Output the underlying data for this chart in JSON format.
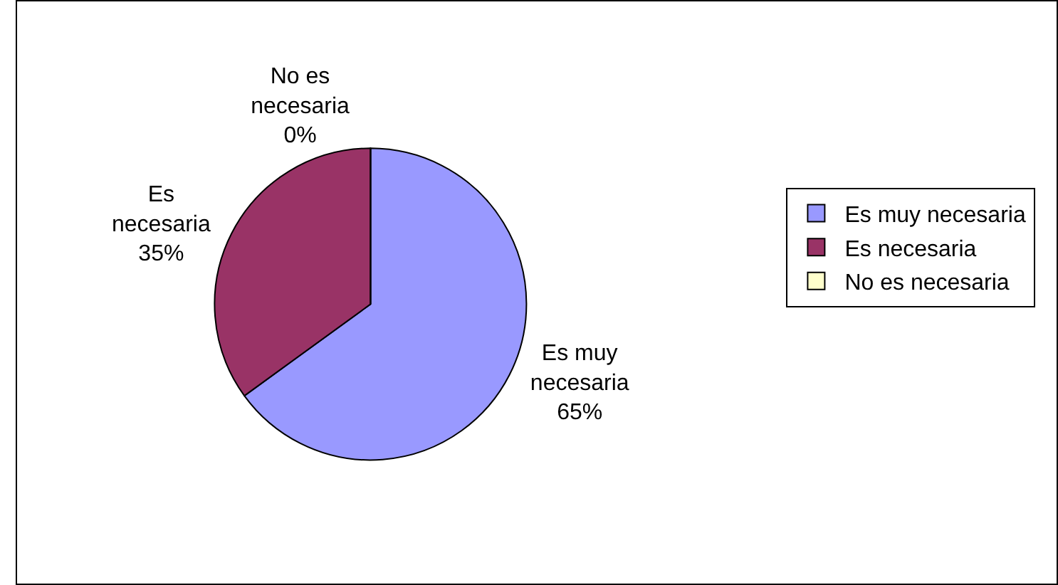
{
  "chart_data": {
    "type": "pie",
    "categories": [
      "Es muy necesaria",
      "Es necesaria",
      "No es necesaria"
    ],
    "values": [
      65,
      35,
      0
    ],
    "value_labels": [
      "65%",
      "35%",
      "0%"
    ],
    "colors": [
      "#9999ff",
      "#993366",
      "#ffffcc"
    ],
    "legend": "right"
  }
}
